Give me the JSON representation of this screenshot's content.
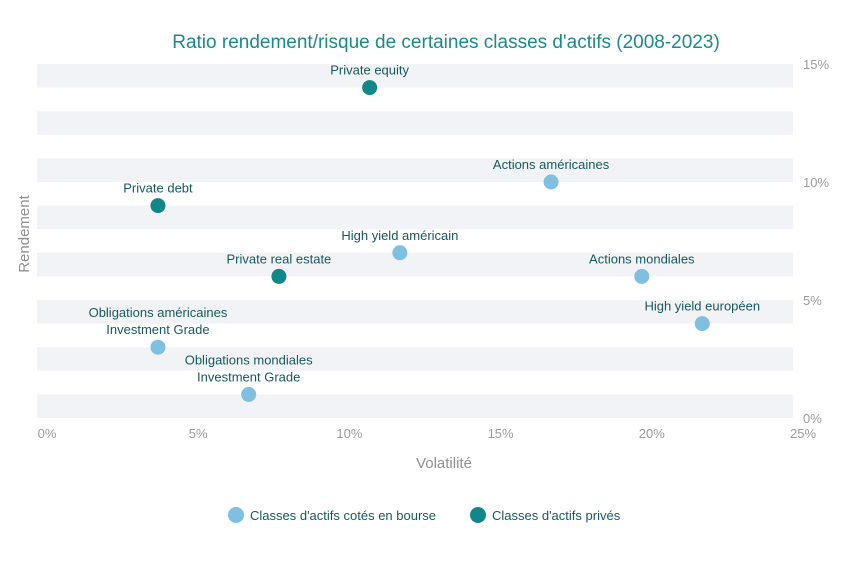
{
  "chart_data": {
    "type": "scatter",
    "title": "Ratio rendement/risque de certaines classes d'actifs (2008-2023)",
    "xlabel": "Volatilité",
    "ylabel": "Rendement",
    "xlim": [
      0,
      25
    ],
    "ylim": [
      0,
      15
    ],
    "x_ticks": [
      {
        "value": 0,
        "label": "0%"
      },
      {
        "value": 5,
        "label": "5%"
      },
      {
        "value": 10,
        "label": "10%"
      },
      {
        "value": 15,
        "label": "15%"
      },
      {
        "value": 20,
        "label": "20%"
      },
      {
        "value": 25,
        "label": "25%"
      }
    ],
    "y_ticks": [
      {
        "value": 0,
        "label": "0%"
      },
      {
        "value": 5,
        "label": "5%"
      },
      {
        "value": 10,
        "label": "10%"
      },
      {
        "value": 15,
        "label": "15%"
      }
    ],
    "grid_bands": true,
    "legend_position": "bottom-center",
    "series": [
      {
        "name": "Classes d'actifs cotés en bourse",
        "color": "#7fbfe0",
        "points": [
          {
            "x": 17,
            "y": 10,
            "label": [
              "Actions américaines"
            ]
          },
          {
            "x": 12,
            "y": 7,
            "label": [
              "High yield américain"
            ]
          },
          {
            "x": 20,
            "y": 6,
            "label": [
              "Actions mondiales"
            ]
          },
          {
            "x": 22,
            "y": 4,
            "label": [
              "High yield européen"
            ]
          },
          {
            "x": 4,
            "y": 3,
            "label": [
              "Obligations américaines",
              "Investment Grade"
            ]
          },
          {
            "x": 7,
            "y": 1,
            "label": [
              "Obligations mondiales",
              "Investment Grade"
            ]
          }
        ]
      },
      {
        "name": "Classes d'actifs privés",
        "color": "#12878a",
        "points": [
          {
            "x": 11,
            "y": 14,
            "label": [
              "Private equity"
            ]
          },
          {
            "x": 4,
            "y": 9,
            "label": [
              "Private debt"
            ]
          },
          {
            "x": 8,
            "y": 6,
            "label": [
              "Private real estate"
            ]
          }
        ]
      }
    ]
  }
}
